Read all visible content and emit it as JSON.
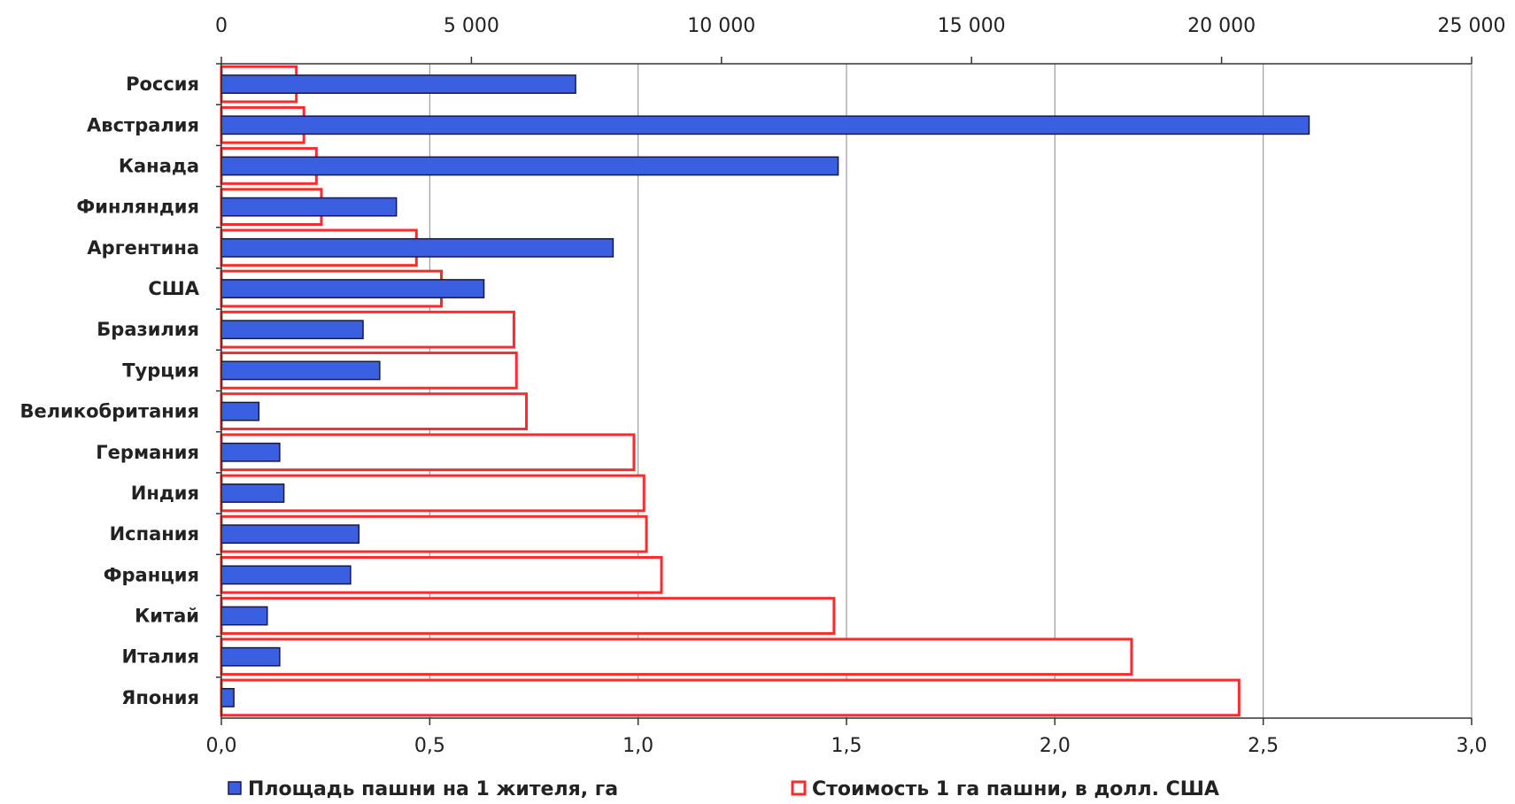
{
  "chart_data": {
    "type": "bar",
    "orientation": "horizontal",
    "categories": [
      "Россия",
      "Австралия",
      "Канада",
      "Финляндия",
      "Аргентина",
      "США",
      "Бразилия",
      "Турция",
      "Великобритания",
      "Германия",
      "Индия",
      "Испания",
      "Франция",
      "Китай",
      "Италия",
      "Япония"
    ],
    "series": [
      {
        "name": "Площадь пашни  на 1 жителя, га",
        "axis": "bottom",
        "color": "#3a5fe0",
        "border": "#1a1a40",
        "values": [
          0.85,
          2.61,
          1.48,
          0.42,
          0.94,
          0.63,
          0.34,
          0.38,
          0.09,
          0.14,
          0.15,
          0.33,
          0.31,
          0.11,
          0.14,
          0.03
        ]
      },
      {
        "name": "Стоимость 1 га пашни, в долл. США",
        "axis": "top",
        "color": "#ff2a2a",
        "fill": "#ffffff",
        "values": [
          1500,
          1650,
          1900,
          2000,
          3900,
          4400,
          5850,
          5900,
          6100,
          8250,
          8450,
          8500,
          8800,
          12250,
          18200,
          20350
        ]
      }
    ],
    "top_axis": {
      "min": 0,
      "max": 25000,
      "ticks": [
        "0",
        "5 000",
        "10 000",
        "15 000",
        "20 000",
        "25 000"
      ]
    },
    "bottom_axis": {
      "min": 0,
      "max": 3.0,
      "ticks": [
        "0,0",
        "0,5",
        "1,0",
        "1,5",
        "2,0",
        "2,5",
        "3,0"
      ]
    },
    "grid": true,
    "legend_position": "bottom"
  }
}
